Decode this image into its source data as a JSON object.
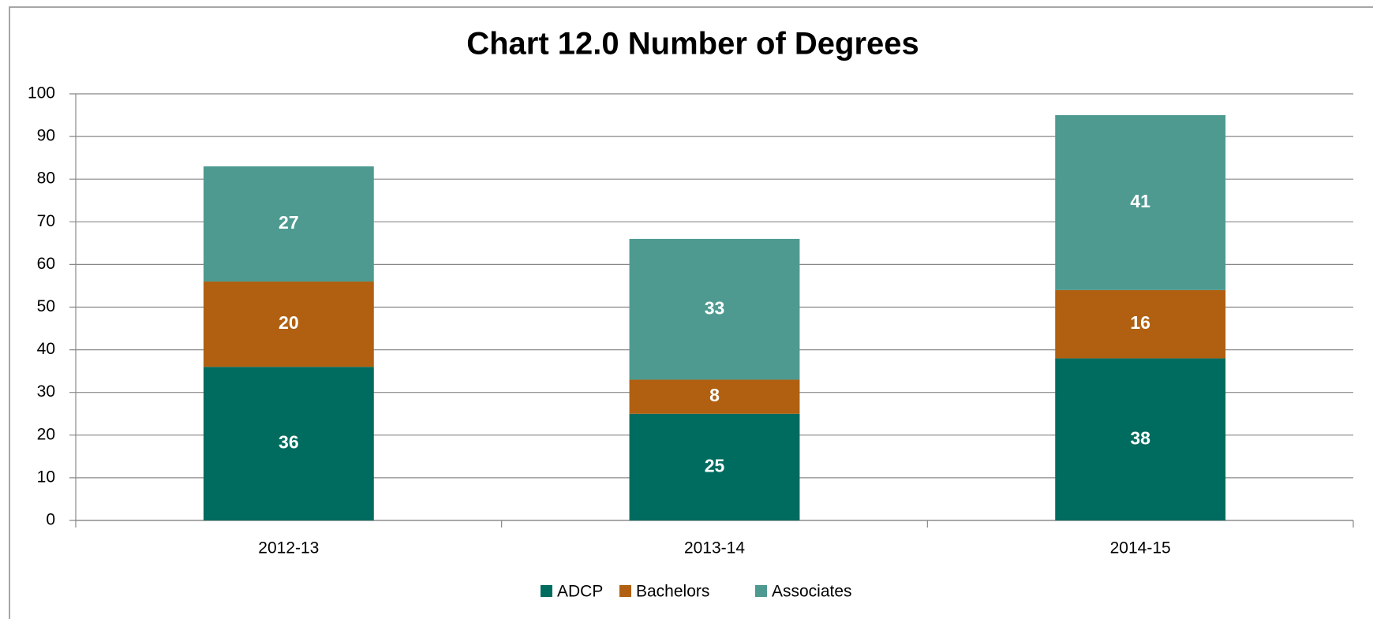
{
  "chart_data": {
    "type": "stacked_bar",
    "title": "Chart 12.0 Number of Degrees",
    "categories": [
      "2012-13",
      "2013-14",
      "2014-15"
    ],
    "series": [
      {
        "name": "ADCP",
        "color": "#006b5f",
        "values": [
          36,
          25,
          38
        ]
      },
      {
        "name": "Bachelors",
        "color": "#b06010",
        "values": [
          20,
          8,
          16
        ]
      },
      {
        "name": "Associates",
        "color": "#4e9a91",
        "values": [
          27,
          33,
          41
        ]
      }
    ],
    "ylim": [
      0,
      100
    ],
    "yticks": [
      0,
      10,
      20,
      30,
      40,
      50,
      60,
      70,
      80,
      90,
      100
    ],
    "grid": true,
    "legend": "bottom"
  }
}
